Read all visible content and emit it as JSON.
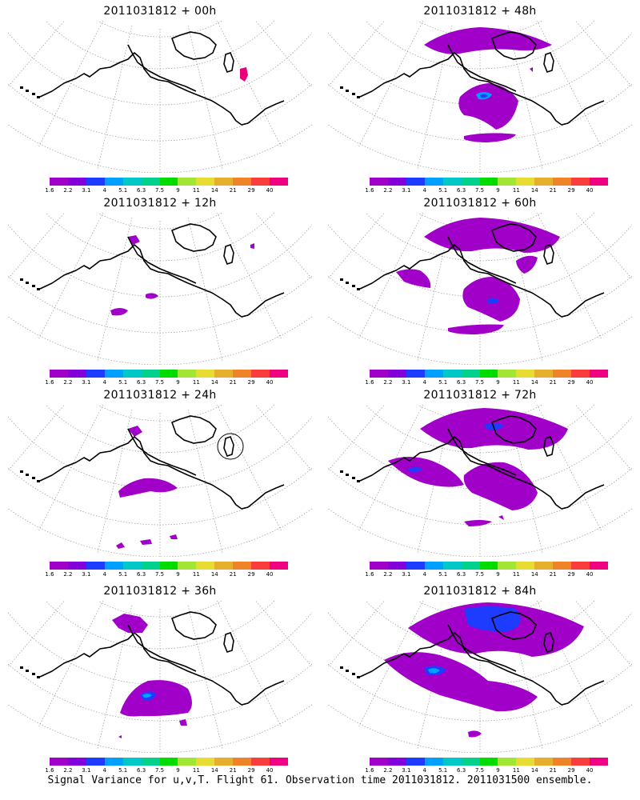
{
  "panels": [
    {
      "title": "2011031812 + 00h",
      "lead": "00h",
      "blobs": [
        {
          "shape": "small-red",
          "color": "#e8007a"
        }
      ]
    },
    {
      "title": "2011031812 + 12h",
      "lead": "12h",
      "blobs": [
        {
          "shape": "pacific-small"
        }
      ]
    },
    {
      "title": "2011031812 + 24h",
      "lead": "24h",
      "blobs": [
        {
          "shape": "pacific-band"
        }
      ]
    },
    {
      "title": "2011031812 + 36h",
      "lead": "36h",
      "blobs": [
        {
          "shape": "gulf-blob"
        }
      ]
    },
    {
      "title": "2011031812 + 48h",
      "lead": "48h",
      "blobs": [
        {
          "shape": "arctic-and-gulf"
        }
      ]
    },
    {
      "title": "2011031812 + 60h",
      "lead": "60h",
      "blobs": [
        {
          "shape": "wide"
        }
      ]
    },
    {
      "title": "2011031812 + 72h",
      "lead": "72h",
      "blobs": [
        {
          "shape": "wider"
        }
      ]
    },
    {
      "title": "2011031812 + 84h",
      "lead": "84h",
      "blobs": [
        {
          "shape": "widest"
        }
      ]
    }
  ],
  "colorbar": {
    "labels": [
      "1.6",
      "2.2",
      "3.1",
      "4",
      "5.1",
      "6.3",
      "7.5",
      "9",
      "11",
      "14",
      "21",
      "29",
      "40"
    ],
    "colors": [
      "#a000c8",
      "#8200dc",
      "#1e3cff",
      "#00a0ff",
      "#00c8c8",
      "#00d28c",
      "#00dc00",
      "#a0e632",
      "#e6dc32",
      "#e6af2d",
      "#f08228",
      "#fa3c3c",
      "#f00082"
    ]
  },
  "footer": "Signal Variance for u,v,T. Flight 61. Observation time 2011031812. 2011031500 ensemble."
}
